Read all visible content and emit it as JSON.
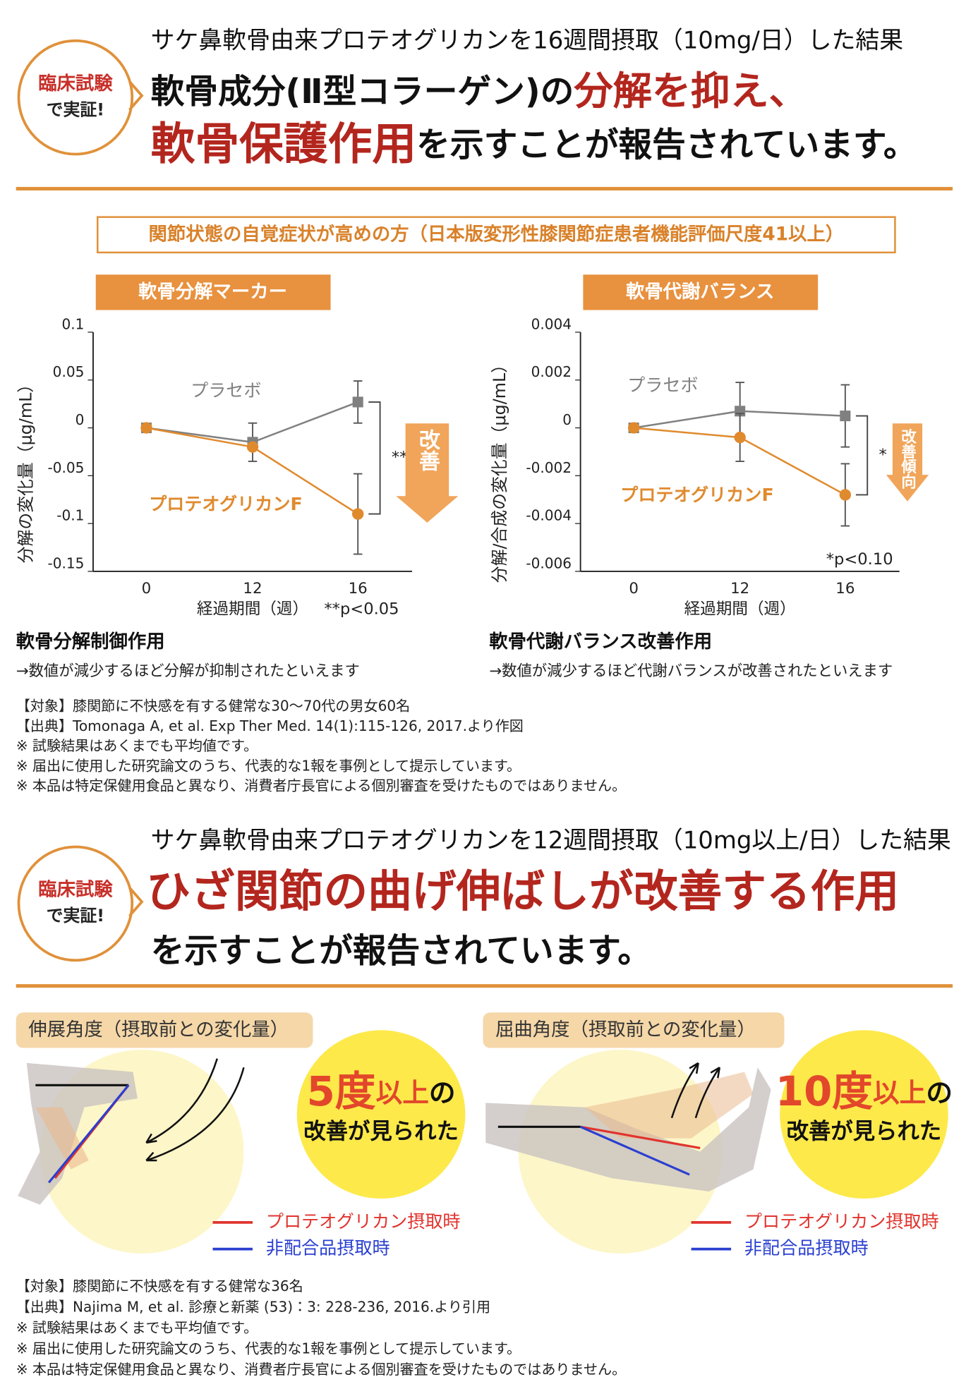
{
  "section1": {
    "badge": [
      "臨床試験",
      "で実証!"
    ],
    "lead": "サケ鼻軟骨由来プロテオグリカンを16週間摂取（10mg/日）した結果",
    "headline_1": "軟骨成分(Ⅱ型コラーゲン)の",
    "headline_1_em": "分解を抑え、",
    "headline_2_em": "軟骨保護作用",
    "headline_2": "を示すことが報告されています。",
    "population": "関節状態の自覚症状が高めの方（日本版変形性膝関節症患者機能評価尺度41以上）",
    "captions": [
      {
        "title": "軟骨分解制御作用",
        "text": "→数値が減少するほど分解が抑制されたといえます"
      },
      {
        "title": "軟骨代謝バランス改善作用",
        "text": "→数値が減少するほど代謝バランスが改善されたといえます"
      }
    ],
    "notes": [
      "【対象】膝関節に不快感を有する健常な30〜70代の男女60名",
      "【出典】Tomonaga A, et al. Exp Ther Med. 14(1):115-126, 2017.より作図",
      "※ 試験結果はあくまでも平均値です。",
      "※ 届出に使用した研究論文のうち、代表的な1報を事例として提示しています。",
      "※ 本品は特定保健用食品と異なり、消費者庁長官による個別審査を受けたものではありません。"
    ]
  },
  "chart_data": [
    {
      "type": "line",
      "title": "軟骨分解マーカー",
      "x_label": "経過期間（週）",
      "y_label": "分解の変化量（μg/mL）",
      "categories": [
        "0",
        "12",
        "16"
      ],
      "ylim": [
        -0.15,
        0.1
      ],
      "yticks": [
        0.1,
        0.05,
        0,
        -0.05,
        -0.1,
        -0.15
      ],
      "series": [
        {
          "name": "プラセボ",
          "color": "#808080",
          "marker": "square",
          "values": [
            0,
            -0.015,
            0.027
          ],
          "errors": [
            null,
            0.02,
            0.022
          ]
        },
        {
          "name": "プロテオグリカンF",
          "color": "#e08a2e",
          "marker": "circle",
          "values": [
            0,
            -0.02,
            -0.09
          ],
          "errors": [
            null,
            null,
            0.042
          ]
        }
      ],
      "annotations": {
        "bracket_label": "**",
        "arrow_label": "改善",
        "p_note": "**p<0.05"
      }
    },
    {
      "type": "line",
      "title": "軟骨代謝バランス",
      "x_label": "経過期間（週）",
      "y_label": "分解/合成の変化量（μg/mL）",
      "categories": [
        "0",
        "12",
        "16"
      ],
      "ylim": [
        -0.006,
        0.004
      ],
      "yticks": [
        0.004,
        0.002,
        0,
        -0.002,
        -0.004,
        -0.006
      ],
      "series": [
        {
          "name": "プラセボ",
          "color": "#808080",
          "marker": "square",
          "values": [
            0,
            0.0007,
            0.0005
          ],
          "errors": [
            null,
            0.0012,
            0.0013
          ]
        },
        {
          "name": "プロテオグリカンF",
          "color": "#e08a2e",
          "marker": "circle",
          "values": [
            0,
            -0.0004,
            -0.0028
          ],
          "errors": [
            null,
            0.001,
            0.0013
          ]
        }
      ],
      "annotations": {
        "bracket_label": "*",
        "arrow_label": "改善傾向",
        "p_note": "*p<0.10"
      }
    }
  ],
  "section2": {
    "badge": [
      "臨床試験",
      "で実証!"
    ],
    "lead": "サケ鼻軟骨由来プロテオグリカンを12週間摂取（10mg以上/日）した結果",
    "headline_em": "ひざ関節の曲げ伸ばしが改善する作用",
    "headline": "を示すことが報告されています。",
    "panels": [
      {
        "title": "伸展角度（摂取前との変化量）",
        "result_num": "5度",
        "result_unit": "以上",
        "result_tail": "の",
        "result_text": "改善が見られた"
      },
      {
        "title": "屈曲角度（摂取前との変化量）",
        "result_num": "10度",
        "result_unit": "以上",
        "result_tail": "の",
        "result_text": "改善が見られた"
      }
    ],
    "legend": [
      {
        "name": "プロテオグリカン摂取時",
        "color": "#e0342e"
      },
      {
        "name": "非配合品摂取時",
        "color": "#2a3fd0"
      }
    ],
    "notes": [
      "【対象】膝関節に不快感を有する健常な36名",
      "【出典】Najima M, et al. 診療と新薬 (53)：3: 228-236, 2016.より引用",
      "※ 試験結果はあくまでも平均値です。",
      "※ 届出に使用した研究論文のうち、代表的な1報を事例として提示しています。",
      "※ 本品は特定保健用食品と異なり、消費者庁長官による個別審査を受けたものではありません。"
    ]
  }
}
